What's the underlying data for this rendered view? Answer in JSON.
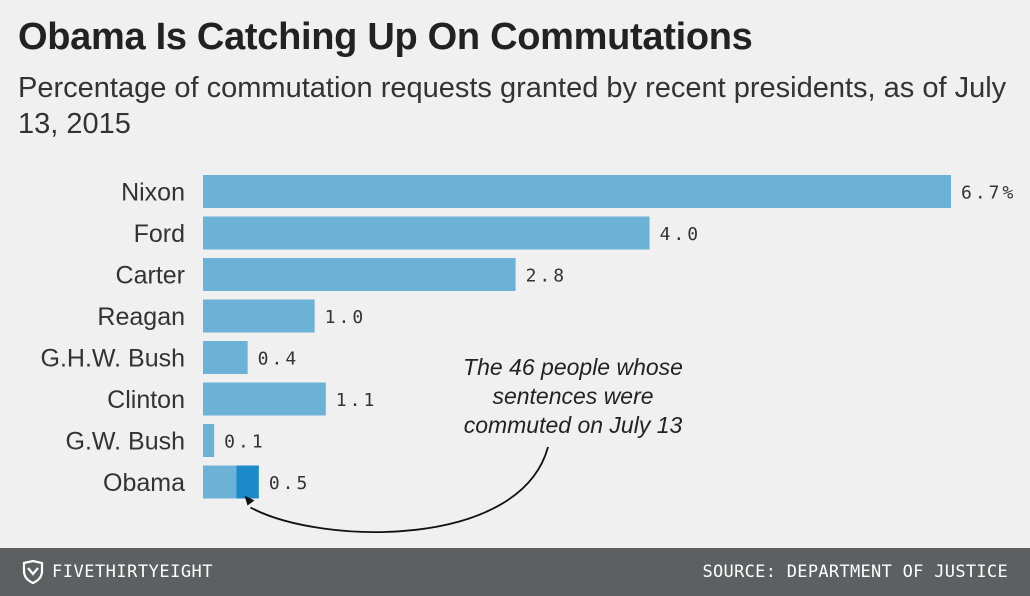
{
  "chart_data": {
    "type": "bar",
    "orientation": "horizontal",
    "title": "Obama Is Catching Up On Commutations",
    "subtitle": "Percentage of commutation requests granted by recent presidents, as of July 13, 2015",
    "categories": [
      "Nixon",
      "Ford",
      "Carter",
      "Reagan",
      "G.H.W. Bush",
      "Clinton",
      "G.W. Bush",
      "Obama"
    ],
    "values": [
      6.7,
      4.0,
      2.8,
      1.0,
      0.4,
      1.1,
      0.1,
      0.5
    ],
    "value_labels": [
      "6.7%",
      "4.0",
      "2.8",
      "1.0",
      "0.4",
      "1.1",
      "0.1",
      "0.5"
    ],
    "highlight": {
      "category": "Obama",
      "before_july_13": 0.3,
      "july_13_portion": 0.2
    },
    "annotation": "The 46 people whose sentences were commuted on July 13",
    "xlim": [
      0,
      6.7
    ],
    "grid": false,
    "colors": {
      "bar": "#6bb2d6",
      "highlight": "#1b8ac9",
      "label": "#333333"
    }
  },
  "footer": {
    "brand": "FIVETHIRTYEIGHT",
    "brand_icon": "fivethirtyeight-logo-icon",
    "source": "SOURCE: DEPARTMENT OF JUSTICE"
  }
}
